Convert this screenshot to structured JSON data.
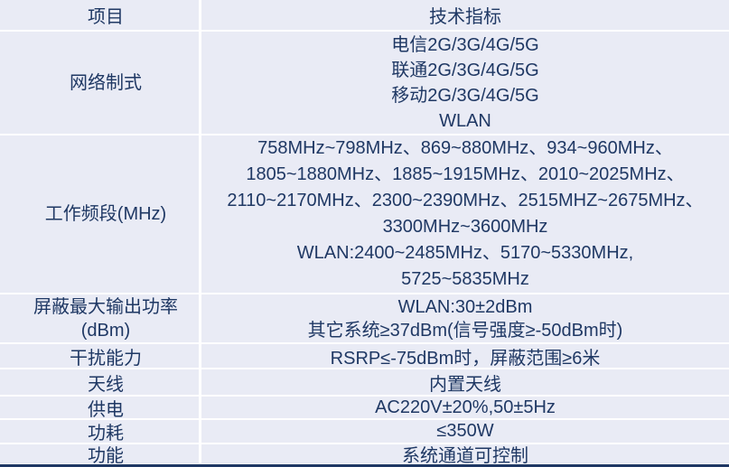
{
  "table": {
    "header": {
      "col1": "项目",
      "col2": "技术指标"
    },
    "rows": [
      {
        "label_lines": [
          "网络制式"
        ],
        "value_lines": [
          "电信2G/3G/4G/5G",
          "联通2G/3G/4G/5G",
          "移动2G/3G/4G/5G",
          "WLAN"
        ]
      },
      {
        "label_lines": [
          "工作频段(MHz)"
        ],
        "value_lines": [
          "758MHz~798MHz、869~880MHz、934~960MHz、",
          "1805~1880MHz、1885~1915MHz、2010~2025MHz、",
          "2110~2170MHz、2300~2390MHz、2515MHZ~2675MHz、",
          "3300MHz~3600MHz",
          "WLAN:2400~2485MHz、5170~5330MHz,",
          "5725~5835MHz"
        ]
      },
      {
        "label_lines": [
          "屏蔽最大输出功率",
          "(dBm)"
        ],
        "value_lines": [
          "WLAN:30±2dBm",
          "其它系统≥37dBm(信号强度≥-50dBm时)"
        ]
      },
      {
        "label_lines": [
          "干扰能力"
        ],
        "value_lines": [
          "RSRP≤-75dBm时，屏蔽范围≥6米"
        ]
      },
      {
        "label_lines": [
          "天线"
        ],
        "value_lines": [
          "内置天线"
        ]
      },
      {
        "label_lines": [
          "供电"
        ],
        "value_lines": [
          "AC220V±20%,50±5Hz"
        ]
      },
      {
        "label_lines": [
          "功耗"
        ],
        "value_lines": [
          "≤350W"
        ]
      },
      {
        "label_lines": [
          "功能"
        ],
        "value_lines": [
          "系统通道可控制"
        ]
      }
    ],
    "colors": {
      "cell_bg": "#e9ebf5",
      "grid_line": "#ffffff",
      "text": "#1f3864",
      "bottom_bar": "#1f3864"
    }
  }
}
